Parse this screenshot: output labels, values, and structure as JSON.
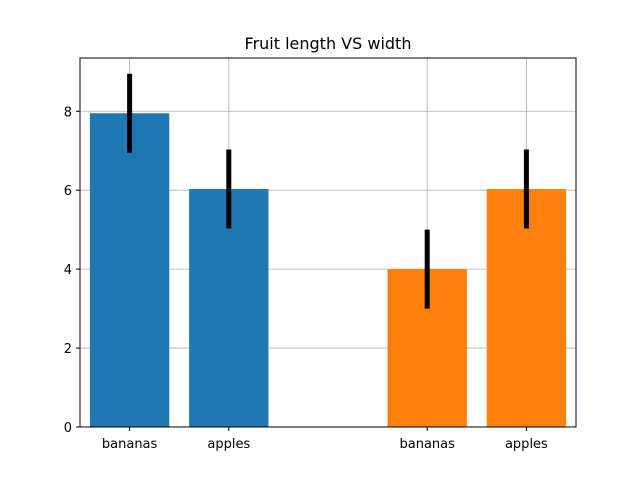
{
  "chart_data": {
    "type": "bar",
    "title": "Fruit length VS width",
    "xlabel": "",
    "ylabel": "",
    "ylim": [
      0,
      9.35
    ],
    "yticks": [
      0,
      2,
      4,
      6,
      8
    ],
    "xlim": [
      -0.5,
      4.5
    ],
    "grid": true,
    "legend": "none",
    "series": [
      {
        "color": "#1f77b4",
        "x": [
          0,
          1
        ],
        "categories": [
          "bananas",
          "apples"
        ],
        "values": [
          7.95,
          6.03
        ],
        "errors": [
          1.0,
          1.0
        ]
      },
      {
        "color": "#ff7f0e",
        "x": [
          3,
          4
        ],
        "categories": [
          "bananas",
          "apples"
        ],
        "values": [
          4.0,
          6.03
        ],
        "errors": [
          1.0,
          1.0
        ]
      }
    ],
    "bar_width": 0.8
  }
}
